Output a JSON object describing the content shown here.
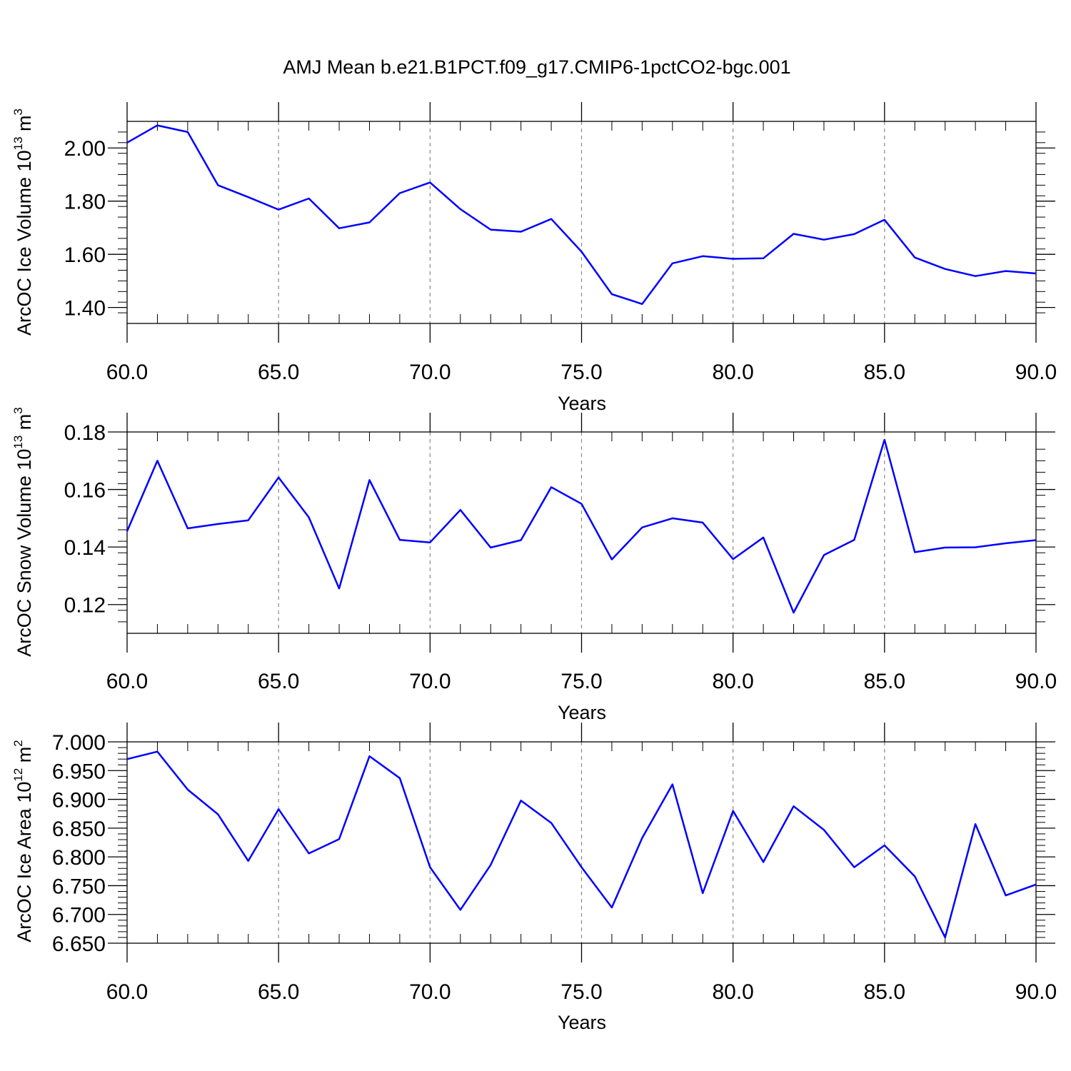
{
  "title": "AMJ Mean b.e21.B1PCT.f09_g17.CMIP6-1pctCO2-bgc.001",
  "chart_data": [
    {
      "type": "line",
      "xlabel": "Years",
      "ylabel_main": "ArcOC Ice Volume 10",
      "ylabel_exp": "13",
      "ylabel_unit": " m",
      "ylabel_unit_exp": "3",
      "xlim": [
        60,
        90
      ],
      "ylim": [
        1.34,
        2.1
      ],
      "x_ticks": [
        60,
        65,
        70,
        75,
        80,
        85,
        90
      ],
      "x_tick_labels": [
        "60.0",
        "65.0",
        "70.0",
        "75.0",
        "80.0",
        "85.0",
        "90.0"
      ],
      "y_ticks": [
        1.4,
        1.6,
        1.8,
        2.0
      ],
      "y_tick_labels": [
        "1.40",
        "1.60",
        "1.80",
        "2.00"
      ],
      "y_minor_step": 0.04,
      "grid": "vertical dashed at major x ticks",
      "series_color": "#0000ff",
      "x": [
        60,
        61,
        62,
        63,
        64,
        65,
        66,
        67,
        68,
        69,
        70,
        71,
        72,
        73,
        74,
        75,
        76,
        77,
        78,
        79,
        80,
        81,
        82,
        83,
        84,
        85,
        86,
        87,
        88,
        89,
        90
      ],
      "values": [
        2.02,
        2.085,
        2.06,
        1.86,
        1.815,
        1.768,
        1.81,
        1.698,
        1.72,
        1.83,
        1.87,
        1.77,
        1.693,
        1.685,
        1.733,
        1.61,
        1.45,
        1.413,
        1.566,
        1.593,
        1.583,
        1.585,
        1.677,
        1.655,
        1.676,
        1.73,
        1.588,
        1.545,
        1.518,
        1.537,
        1.528
      ]
    },
    {
      "type": "line",
      "xlabel": "Years",
      "ylabel_main": "ArcOC Snow Volume 10",
      "ylabel_exp": "13",
      "ylabel_unit": " m",
      "ylabel_unit_exp": "3",
      "xlim": [
        60,
        90
      ],
      "ylim": [
        0.11,
        0.18
      ],
      "x_ticks": [
        60,
        65,
        70,
        75,
        80,
        85,
        90
      ],
      "x_tick_labels": [
        "60.0",
        "65.0",
        "70.0",
        "75.0",
        "80.0",
        "85.0",
        "90.0"
      ],
      "y_ticks": [
        0.12,
        0.14,
        0.16,
        0.18
      ],
      "y_tick_labels": [
        "0.12",
        "0.14",
        "0.16",
        "0.18"
      ],
      "y_minor_step": 0.004,
      "grid": "vertical dashed at major x ticks",
      "series_color": "#0000ff",
      "x": [
        60,
        61,
        62,
        63,
        64,
        65,
        66,
        67,
        68,
        69,
        70,
        71,
        72,
        73,
        74,
        75,
        76,
        77,
        78,
        79,
        80,
        81,
        82,
        83,
        84,
        85,
        86,
        87,
        88,
        89,
        90
      ],
      "values": [
        0.1455,
        0.17,
        0.1465,
        0.148,
        0.1493,
        0.1642,
        0.1503,
        0.1256,
        0.1633,
        0.1425,
        0.1416,
        0.1529,
        0.1398,
        0.1424,
        0.1608,
        0.155,
        0.1357,
        0.1468,
        0.15,
        0.1485,
        0.1358,
        0.1433,
        0.1172,
        0.1372,
        0.1425,
        0.1773,
        0.1382,
        0.1398,
        0.1399,
        0.1413,
        0.1424
      ]
    },
    {
      "type": "line",
      "xlabel": "Years",
      "ylabel_main": "ArcOC Ice Area 10",
      "ylabel_exp": "12",
      "ylabel_unit": " m",
      "ylabel_unit_exp": "2",
      "xlim": [
        60,
        90
      ],
      "ylim": [
        6.65,
        7.0
      ],
      "x_ticks": [
        60,
        65,
        70,
        75,
        80,
        85,
        90
      ],
      "x_tick_labels": [
        "60.0",
        "65.0",
        "70.0",
        "75.0",
        "80.0",
        "85.0",
        "90.0"
      ],
      "y_ticks": [
        6.65,
        6.7,
        6.75,
        6.8,
        6.85,
        6.9,
        6.95,
        7.0
      ],
      "y_tick_labels": [
        "6.650",
        "6.700",
        "6.750",
        "6.800",
        "6.850",
        "6.900",
        "6.950",
        "7.000"
      ],
      "y_minor_step": 0.01,
      "grid": "vertical dashed at major x ticks",
      "series_color": "#0000ff",
      "x": [
        60,
        61,
        62,
        63,
        64,
        65,
        66,
        67,
        68,
        69,
        70,
        71,
        72,
        73,
        74,
        75,
        76,
        77,
        78,
        79,
        80,
        81,
        82,
        83,
        84,
        85,
        86,
        87,
        88,
        89,
        90
      ],
      "values": [
        6.97,
        6.983,
        6.917,
        6.874,
        6.793,
        6.883,
        6.806,
        6.831,
        6.975,
        6.937,
        6.782,
        6.708,
        6.786,
        6.898,
        6.859,
        6.782,
        6.712,
        6.833,
        6.926,
        6.737,
        6.88,
        6.791,
        6.888,
        6.847,
        6.782,
        6.82,
        6.766,
        6.66,
        6.857,
        6.733,
        6.752
      ]
    }
  ]
}
